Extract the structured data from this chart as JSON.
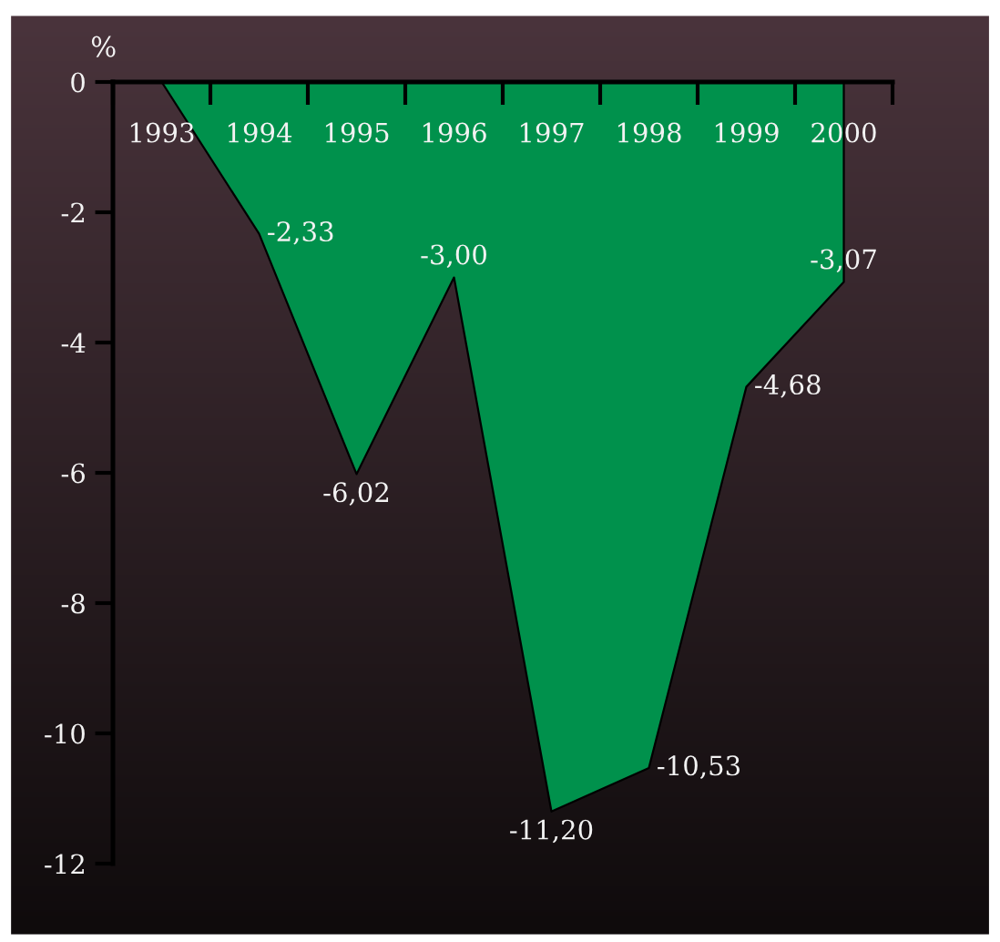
{
  "chart_data": {
    "type": "area",
    "ylabel": "%",
    "categories": [
      "1993",
      "1994",
      "1995",
      "1996",
      "1997",
      "1998",
      "1999",
      "2000"
    ],
    "values": [
      0,
      -2.33,
      -6.02,
      -3.0,
      -11.2,
      -10.53,
      -4.68,
      -3.07
    ],
    "value_labels": [
      null,
      "-2,33",
      "-6,02",
      "-3,00",
      "-11,20",
      "-10,53",
      "-4,68",
      "-3,07"
    ],
    "color": "#00914c",
    "ylim": [
      -12,
      0
    ],
    "yticks": [
      0,
      -2,
      -4,
      -6,
      -8,
      -10,
      -12
    ],
    "grid": false,
    "legend": false
  }
}
